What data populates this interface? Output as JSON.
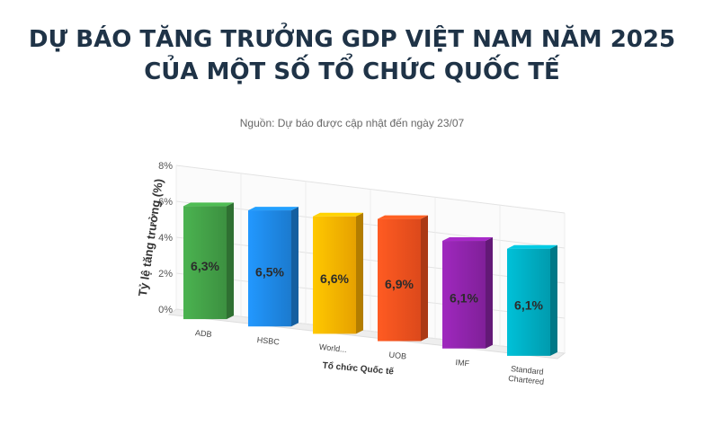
{
  "title": {
    "line1": "DỰ BÁO TĂNG TRƯỞNG GDP VIỆT NAM NĂM 2025",
    "line2": "CỦA MỘT SỐ TỔ CHỨC QUỐC TẾ"
  },
  "subtitle": "Nguồn: Dự báo được cập nhật đến ngày 23/07",
  "chart_data": {
    "type": "bar",
    "title": "DỰ BÁO TĂNG TRƯỞNG GDP VIỆT NAM NĂM 2025 CỦA MỘT SỐ TỔ CHỨC QUỐC TẾ",
    "subtitle": "Nguồn: Dự báo được cập nhật đến ngày 23/07",
    "xlabel": "Tổ chức Quốc tế",
    "ylabel": "Tỷ lệ tăng trưởng (%)",
    "categories": [
      "ADB",
      "HSBC",
      "World...",
      "UOB",
      "IMF",
      "Standard Chartered"
    ],
    "values": [
      6.3,
      6.5,
      6.6,
      6.9,
      6.1,
      6.1
    ],
    "data_labels": [
      "6,3%",
      "6,5%",
      "6,6%",
      "6,9%",
      "6,1%",
      "6,1%"
    ],
    "yticks": [
      "0%",
      "2%",
      "4%",
      "6%",
      "8%"
    ],
    "ylim": [
      0,
      8
    ],
    "grid": true,
    "legend": "none",
    "colors": [
      "#43a047",
      "#1e88e5",
      "#ffb300",
      "#f4511e",
      "#8e24aa",
      "#00acc1"
    ]
  }
}
